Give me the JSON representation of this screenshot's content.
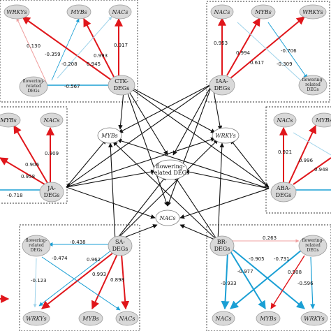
{
  "center": {
    "mybs": "MYBs",
    "wrkys": "WRKYs",
    "nacs": "NACs",
    "flowering_l1": "flowering-",
    "flowering_l2": "related DEGs"
  },
  "ctk": {
    "hub_l1": "CTK-",
    "hub_l2": "DEGs",
    "wrkys": "WRKYs",
    "mybs": "MYBs",
    "nacs": "NACs",
    "flow_l1": "flowering-",
    "flow_l2": "related",
    "flow_l3": "DEGs",
    "weights": {
      "w1": "0.130",
      "w2": "-0.359",
      "w3": "0.993",
      "w4": "0.917",
      "w5": "-0.208",
      "w6": "0.945",
      "w7": "-0.567"
    }
  },
  "iaa": {
    "hub_l1": "IAA-",
    "hub_l2": "DEGs",
    "nacs": "NACs",
    "mybs": "MYBs",
    "wrkys": "WRKYs",
    "flow_l1": "flowering-",
    "flow_l2": "related",
    "flow_l3": "DEGs",
    "weights": {
      "w1": "0.953",
      "w2": "0.994",
      "w3": "-0.706",
      "w4": "0.617",
      "w5": "-0.309"
    }
  },
  "ja": {
    "hub_l1": "JA-",
    "hub_l2": "DEGs",
    "mybs": "MYBs",
    "nacs": "NACs",
    "weights": {
      "w1": "0.909",
      "w2": "0.906",
      "w3": "0.958",
      "w4": "-0.718"
    }
  },
  "aba": {
    "hub_l1": "ABA-",
    "hub_l2": "DEGs",
    "nacs": "NACs",
    "mybs": "MYBs",
    "weights": {
      "w1": "0.921",
      "w2": "0.996",
      "w3": "0.948"
    }
  },
  "sa": {
    "hub_l1": "SA-",
    "hub_l2": "DEGs",
    "flow_l1": "flowering-",
    "flow_l2": "related",
    "flow_l3": "DEGs",
    "wrkys": "WRKYs",
    "mybs": "MYBs",
    "nacs": "NACs",
    "weights": {
      "w1": "-0.438",
      "w2": "-0.474",
      "w3": "0.962",
      "w4": "0.993",
      "w5": "0.898",
      "w6": "-0.123"
    }
  },
  "br": {
    "hub_l1": "BR-",
    "hub_l2": "DEGs",
    "flow_l1": "flowering-",
    "flow_l2": "related",
    "flow_l3": "DEGs",
    "nacs": "NACs",
    "mybs": "MYBs",
    "wrkys": "WRKYs",
    "weights": {
      "w1": "0.263",
      "w2": "-0.905",
      "w3": "-0.731",
      "w4": "-0.977",
      "w5": "0.508",
      "w6": "-0.933",
      "w7": "-0.596"
    }
  },
  "colors": {
    "positive": "#e0161b",
    "negative": "#1a9fd4",
    "weak_positive": "#f0a0a0",
    "weak_negative": "#9fd3ea",
    "hub": "#111111"
  }
}
